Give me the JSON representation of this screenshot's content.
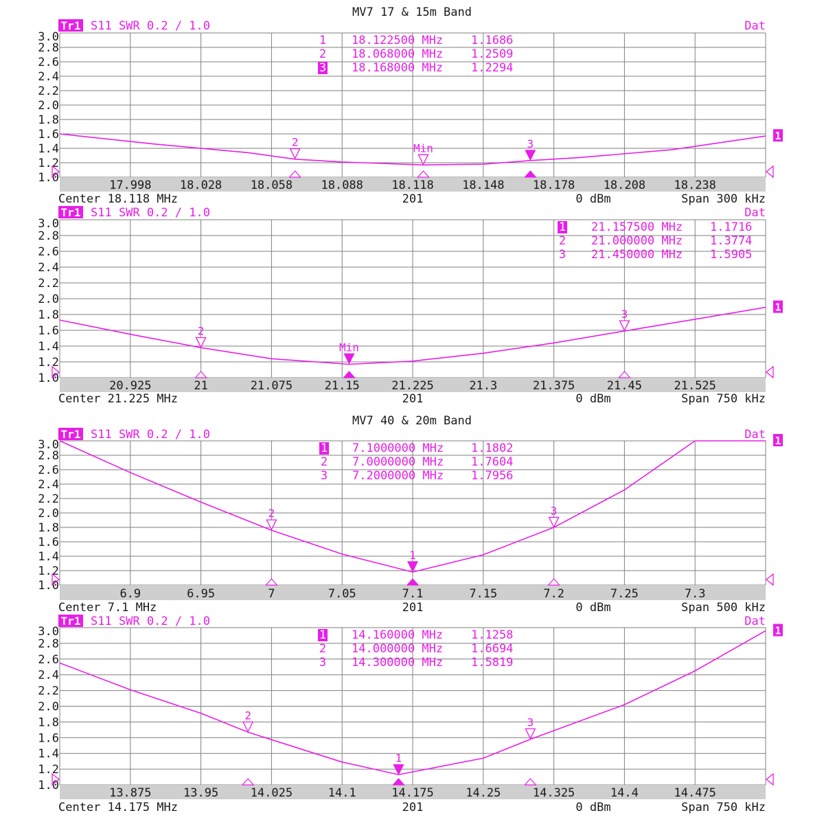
{
  "colors": {
    "trace": "#e81ee8",
    "grid": "#7f7f7f",
    "text": "#1a1a1a",
    "axis_band": "#cfcfcf",
    "background": "#ffffff"
  },
  "group_titles": [
    "MV7 17 & 15m Band",
    "MV7 40 & 20m Band"
  ],
  "chart_data": [
    {
      "type": "line",
      "group_title": "MV7 17 & 15m Band",
      "trace_label": "Tr1",
      "header": "S11 SWR 0.2 / 1.0",
      "status": "Dat",
      "y_ticks": [
        "3.0",
        "2.8",
        "2.6",
        "2.4",
        "2.2",
        "2.0",
        "1.8",
        "1.6",
        "1.4",
        "1.2",
        "1.0"
      ],
      "ylim": [
        1.0,
        3.0
      ],
      "xlim": [
        17.968,
        18.268
      ],
      "x_ticks": [
        "17.998",
        "18.028",
        "18.058",
        "18.088",
        "18.118",
        "18.148",
        "18.178",
        "18.208",
        "18.238"
      ],
      "footer": {
        "center": "Center 18.118 MHz",
        "points": "201",
        "power": "0 dBm",
        "span": "Span 300 kHz"
      },
      "ref_label": "1",
      "x": [
        17.968,
        18.008,
        18.048,
        18.068,
        18.088,
        18.1225,
        18.148,
        18.168,
        18.188,
        18.228,
        18.268
      ],
      "y": [
        1.6,
        1.46,
        1.34,
        1.25,
        1.21,
        1.17,
        1.18,
        1.23,
        1.27,
        1.38,
        1.57
      ],
      "markers": [
        {
          "id": "1",
          "freq": "18.122500 MHz",
          "swr": "1.1686",
          "x": 18.1225,
          "y": 1.1686,
          "label": "Min",
          "active": false
        },
        {
          "id": "2",
          "freq": "18.068000 MHz",
          "swr": "1.2509",
          "x": 18.068,
          "y": 1.2509,
          "label": "2",
          "active": false
        },
        {
          "id": "3",
          "freq": "18.168000 MHz",
          "swr": "1.2294",
          "x": 18.168,
          "y": 1.2294,
          "label": "3",
          "active": true
        }
      ]
    },
    {
      "type": "line",
      "trace_label": "Tr1",
      "header": "S11 SWR 0.2 / 1.0",
      "status": "Dat",
      "y_ticks": [
        "3.0",
        "2.8",
        "2.6",
        "2.4",
        "2.2",
        "2.0",
        "1.8",
        "1.6",
        "1.4",
        "1.2",
        "1.0"
      ],
      "ylim": [
        1.0,
        3.0
      ],
      "xlim": [
        20.85,
        21.6
      ],
      "x_ticks": [
        "20.925",
        "21",
        "21.075",
        "21.15",
        "21.225",
        "21.3",
        "21.375",
        "21.45",
        "21.525"
      ],
      "footer": {
        "center": "Center 21.225 MHz",
        "points": "201",
        "power": "0 dBm",
        "span": "Span 750 kHz"
      },
      "ref_label": "1",
      "x": [
        20.85,
        20.925,
        21.0,
        21.075,
        21.1575,
        21.225,
        21.3,
        21.375,
        21.45,
        21.525,
        21.6
      ],
      "y": [
        1.73,
        1.55,
        1.38,
        1.24,
        1.17,
        1.21,
        1.31,
        1.44,
        1.59,
        1.74,
        1.89
      ],
      "markers": [
        {
          "id": "1",
          "freq": "21.157500 MHz",
          "swr": "1.1716",
          "x": 21.1575,
          "y": 1.1716,
          "label": "Min",
          "active": true
        },
        {
          "id": "2",
          "freq": "21.000000 MHz",
          "swr": "1.3774",
          "x": 21.0,
          "y": 1.3774,
          "label": "2",
          "active": false
        },
        {
          "id": "3",
          "freq": "21.450000 MHz",
          "swr": "1.5905",
          "x": 21.45,
          "y": 1.5905,
          "label": "3",
          "active": false
        }
      ]
    },
    {
      "type": "line",
      "group_title": "MV7 40 & 20m Band",
      "trace_label": "Tr1",
      "header": "S11 SWR 0.2 / 1.0",
      "status": "Dat",
      "y_ticks": [
        "3.0",
        "2.8",
        "2.6",
        "2.4",
        "2.2",
        "2.0",
        "1.8",
        "1.6",
        "1.4",
        "1.2",
        "1.0"
      ],
      "ylim": [
        1.0,
        3.0
      ],
      "xlim": [
        6.85,
        7.35
      ],
      "x_ticks": [
        "6.9",
        "6.95",
        "7",
        "7.05",
        "7.1",
        "7.15",
        "7.2",
        "7.25",
        "7.3"
      ],
      "footer": {
        "center": "Center 7.1 MHz",
        "points": "201",
        "power": "0 dBm",
        "span": "Span 500 kHz"
      },
      "ref_label": "1",
      "x": [
        6.85,
        6.9,
        6.95,
        7.0,
        7.05,
        7.1,
        7.15,
        7.2,
        7.25,
        7.3,
        7.35
      ],
      "y": [
        3.0,
        2.56,
        2.15,
        1.76,
        1.43,
        1.18,
        1.42,
        1.8,
        2.32,
        3.0,
        3.0
      ],
      "markers": [
        {
          "id": "1",
          "freq": "7.1000000 MHz",
          "swr": "1.1802",
          "x": 7.1,
          "y": 1.1802,
          "label": "1",
          "active": true
        },
        {
          "id": "2",
          "freq": "7.0000000 MHz",
          "swr": "1.7604",
          "x": 7.0,
          "y": 1.7604,
          "label": "2",
          "active": false
        },
        {
          "id": "3",
          "freq": "7.2000000 MHz",
          "swr": "1.7956",
          "x": 7.2,
          "y": 1.7956,
          "label": "3",
          "active": false
        }
      ]
    },
    {
      "type": "line",
      "trace_label": "Tr1",
      "header": "S11 SWR 0.2 / 1.0",
      "status": "Dat",
      "y_ticks": [
        "3.0",
        "2.8",
        "2.6",
        "2.4",
        "2.2",
        "2.0",
        "1.8",
        "1.6",
        "1.4",
        "1.2",
        "1.0"
      ],
      "ylim": [
        1.0,
        3.0
      ],
      "xlim": [
        13.8,
        14.55
      ],
      "x_ticks": [
        "13.875",
        "13.95",
        "14.025",
        "14.1",
        "14.175",
        "14.25",
        "14.325",
        "14.4",
        "14.475"
      ],
      "footer": {
        "center": "Center 14.175 MHz",
        "points": "201",
        "power": "0 dBm",
        "span": "Span 750 kHz"
      },
      "ref_label": "1",
      "x": [
        13.8,
        13.875,
        13.95,
        14.0,
        14.1,
        14.16,
        14.25,
        14.3,
        14.4,
        14.475,
        14.55
      ],
      "y": [
        2.55,
        2.21,
        1.91,
        1.67,
        1.29,
        1.13,
        1.34,
        1.58,
        2.02,
        2.45,
        2.96
      ],
      "markers": [
        {
          "id": "1",
          "freq": "14.160000 MHz",
          "swr": "1.1258",
          "x": 14.16,
          "y": 1.1258,
          "label": "1",
          "active": true
        },
        {
          "id": "2",
          "freq": "14.000000 MHz",
          "swr": "1.6694",
          "x": 14.0,
          "y": 1.6694,
          "label": "2",
          "active": false
        },
        {
          "id": "3",
          "freq": "14.300000 MHz",
          "swr": "1.5819",
          "x": 14.3,
          "y": 1.5819,
          "label": "3",
          "active": false
        }
      ]
    }
  ]
}
